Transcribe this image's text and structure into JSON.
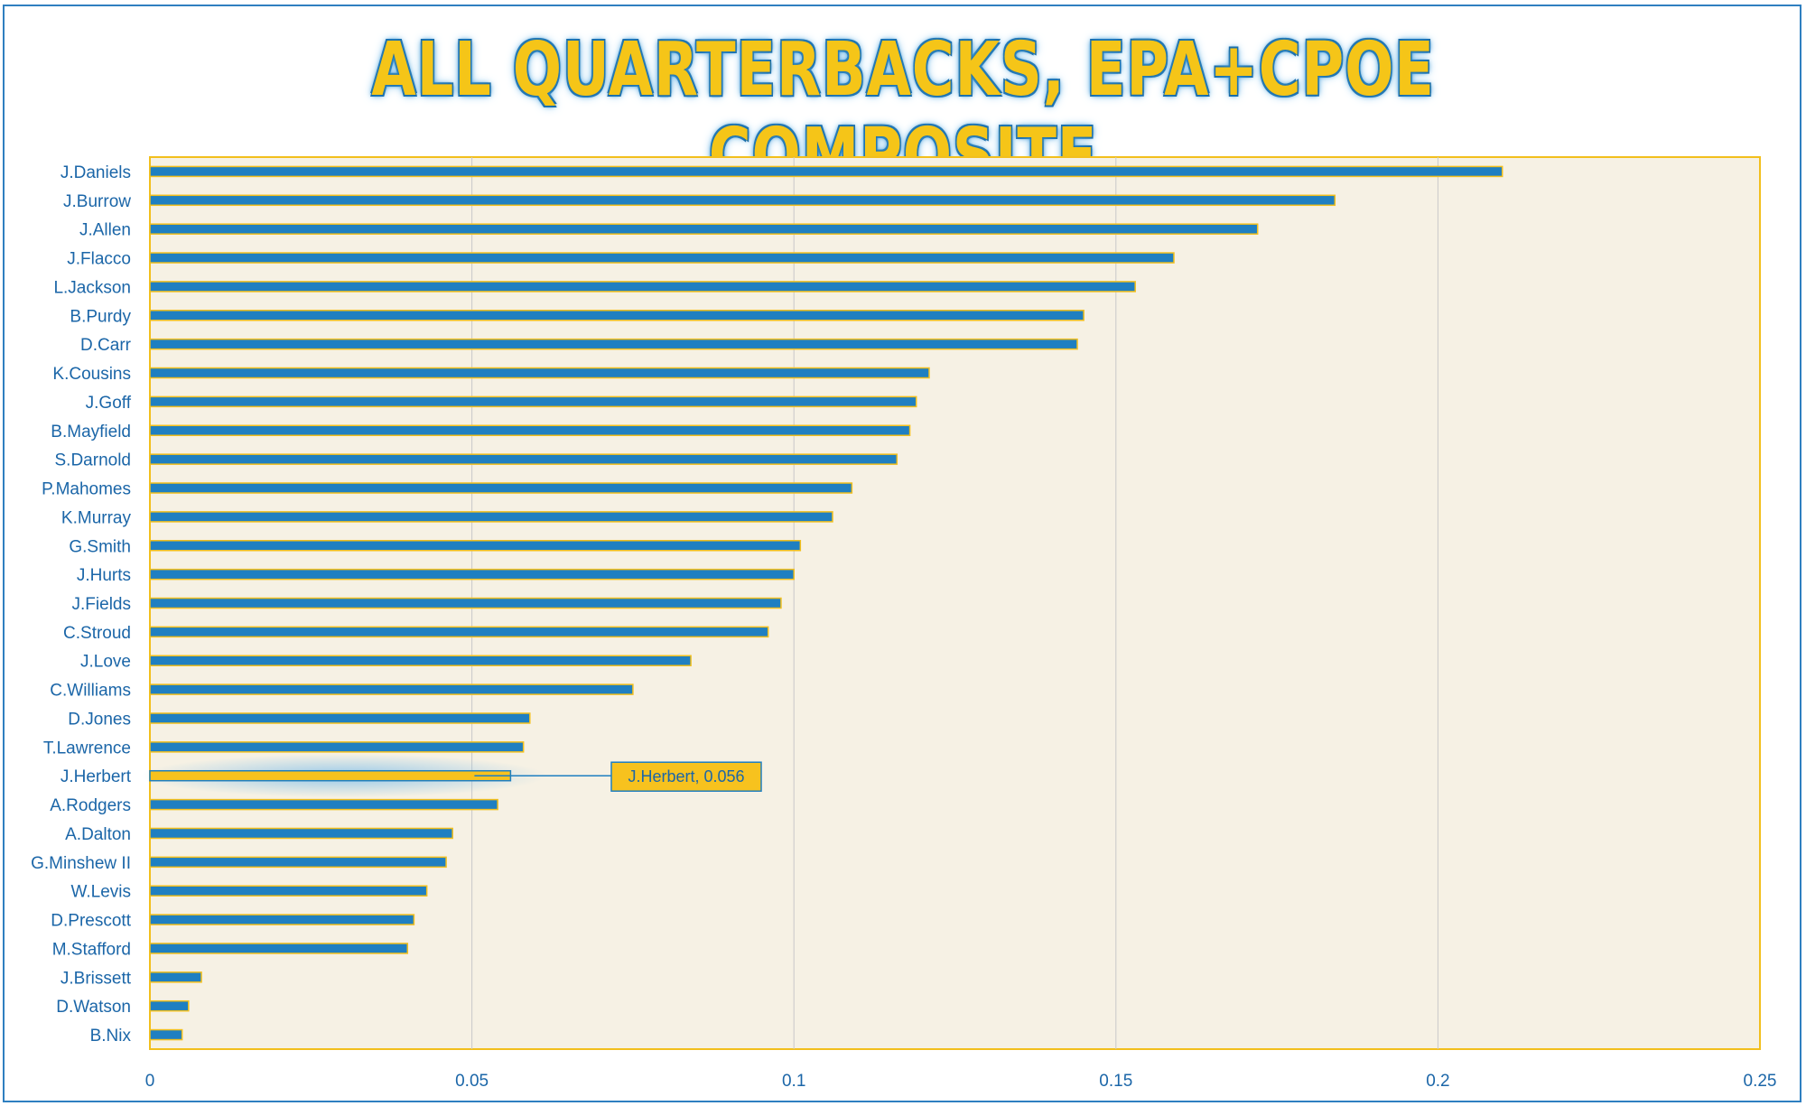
{
  "colors": {
    "bar_fill": "#1f7fc1",
    "bar_edge": "#f2bf1c",
    "highlight_fill": "#f7c21e",
    "highlight_edge": "#1f7fc1",
    "text": "#1b66a8",
    "plot_border": "#f2bf1c",
    "plot_bg": "#f6f1e4",
    "grid": "#c9c9c9"
  },
  "chart_data": {
    "type": "bar",
    "orientation": "horizontal",
    "title": "ALL QUARTERBACKS, EPA+CPOE COMPOSITE",
    "xlabel": "",
    "ylabel": "",
    "xlim": [
      0,
      0.25
    ],
    "xticks": [
      0,
      0.05,
      0.1,
      0.15,
      0.2,
      0.25
    ],
    "xtick_labels": [
      "0",
      "0.05",
      "0.1",
      "0.15",
      "0.2",
      "0.25"
    ],
    "grid": "vertical",
    "categories": [
      "J.Daniels",
      "J.Burrow",
      "J.Allen",
      "J.Flacco",
      "L.Jackson",
      "B.Purdy",
      "D.Carr",
      "K.Cousins",
      "J.Goff",
      "B.Mayfield",
      "S.Darnold",
      "P.Mahomes",
      "K.Murray",
      "G.Smith",
      "J.Hurts",
      "J.Fields",
      "C.Stroud",
      "J.Love",
      "C.Williams",
      "D.Jones",
      "T.Lawrence",
      "J.Herbert",
      "A.Rodgers",
      "A.Dalton",
      "G.Minshew II",
      "W.Levis",
      "D.Prescott",
      "M.Stafford",
      "J.Brissett",
      "D.Watson",
      "B.Nix"
    ],
    "values": [
      0.21,
      0.184,
      0.172,
      0.159,
      0.153,
      0.145,
      0.144,
      0.121,
      0.119,
      0.118,
      0.116,
      0.109,
      0.106,
      0.101,
      0.1,
      0.098,
      0.096,
      0.084,
      0.075,
      0.059,
      0.058,
      0.056,
      0.054,
      0.047,
      0.046,
      0.043,
      0.041,
      0.04,
      0.008,
      0.006,
      0.005
    ],
    "highlight": {
      "category": "J.Herbert",
      "label": "J.Herbert, 0.056"
    }
  }
}
